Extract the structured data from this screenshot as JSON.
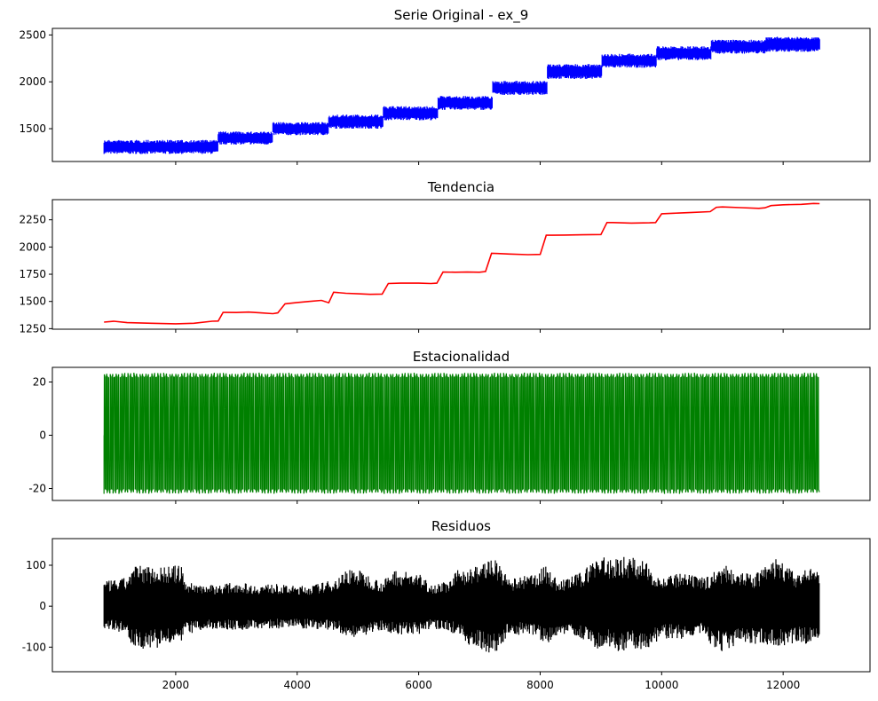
{
  "chart_data": [
    {
      "type": "line",
      "title": "Serie Original - ex_9",
      "color": "#0000ff",
      "xlim": [
        -30,
        13430
      ],
      "ylim": [
        1150,
        2570
      ],
      "yticks": [
        1500,
        2000,
        2500
      ],
      "xticks": [
        2000,
        4000,
        6000,
        8000,
        10000,
        12000
      ],
      "show_xtick_labels": false,
      "band": true,
      "level_segments": [
        {
          "x": [
            820,
            2700
          ],
          "lo": 1230,
          "hi": 1380
        },
        {
          "x": [
            2700,
            3600
          ],
          "lo": 1330,
          "hi": 1470
        },
        {
          "x": [
            3600,
            4520
          ],
          "lo": 1430,
          "hi": 1570
        },
        {
          "x": [
            4520,
            5420
          ],
          "lo": 1500,
          "hi": 1650
        },
        {
          "x": [
            5420,
            6320
          ],
          "lo": 1590,
          "hi": 1740
        },
        {
          "x": [
            6320,
            7220
          ],
          "lo": 1700,
          "hi": 1850
        },
        {
          "x": [
            7220,
            8120
          ],
          "lo": 1860,
          "hi": 2010
        },
        {
          "x": [
            8120,
            9020
          ],
          "lo": 2030,
          "hi": 2190
        },
        {
          "x": [
            9020,
            9920
          ],
          "lo": 2150,
          "hi": 2300
        },
        {
          "x": [
            9920,
            10820
          ],
          "lo": 2230,
          "hi": 2380
        },
        {
          "x": [
            10820,
            11720
          ],
          "lo": 2300,
          "hi": 2450
        },
        {
          "x": [
            11720,
            12600
          ],
          "lo": 2320,
          "hi": 2480
        }
      ]
    },
    {
      "type": "line",
      "title": "Tendencia",
      "color": "#ff0000",
      "xlim": [
        -30,
        13430
      ],
      "ylim": [
        1245,
        2435
      ],
      "yticks": [
        1250,
        1500,
        1750,
        2000,
        2250
      ],
      "xticks": [
        2000,
        4000,
        6000,
        8000,
        10000,
        12000
      ],
      "show_xtick_labels": false,
      "x": [
        820,
        980,
        1200,
        1600,
        2000,
        2300,
        2600,
        2700,
        2780,
        3000,
        3200,
        3400,
        3600,
        3680,
        3800,
        4000,
        4200,
        4400,
        4520,
        4600,
        4800,
        5000,
        5200,
        5400,
        5500,
        5700,
        6000,
        6200,
        6300,
        6400,
        6600,
        6800,
        7000,
        7100,
        7200,
        7300,
        7500,
        7800,
        8000,
        8100,
        8200,
        8400,
        8700,
        9000,
        9100,
        9200,
        9500,
        9800,
        9900,
        10000,
        10200,
        10500,
        10800,
        10900,
        11000,
        11300,
        11600,
        11700,
        11800,
        12000,
        12300,
        12500,
        12600
      ],
      "y": [
        1310,
        1318,
        1305,
        1300,
        1295,
        1300,
        1318,
        1320,
        1400,
        1398,
        1402,
        1395,
        1388,
        1395,
        1478,
        1490,
        1500,
        1510,
        1488,
        1585,
        1575,
        1570,
        1565,
        1568,
        1665,
        1668,
        1668,
        1665,
        1668,
        1770,
        1768,
        1770,
        1768,
        1775,
        1942,
        1940,
        1935,
        1930,
        1932,
        2108,
        2108,
        2110,
        2112,
        2115,
        2225,
        2225,
        2220,
        2222,
        2225,
        2305,
        2310,
        2318,
        2325,
        2365,
        2368,
        2362,
        2355,
        2360,
        2380,
        2388,
        2392,
        2400,
        2398
      ]
    },
    {
      "type": "line",
      "title": "Estacionalidad",
      "color": "#008000",
      "xlim": [
        -30,
        13430
      ],
      "ylim": [
        -24.5,
        25.5
      ],
      "yticks": [
        -20,
        0,
        20
      ],
      "xticks": [
        2000,
        4000,
        6000,
        8000,
        10000,
        12000
      ],
      "show_xtick_labels": false,
      "periodic": {
        "x": [
          820,
          12600
        ],
        "min": -22,
        "max": 23.5,
        "cycles": 120
      }
    },
    {
      "type": "line",
      "title": "Residuos",
      "color": "#000000",
      "xlim": [
        -30,
        13430
      ],
      "ylim": [
        -160,
        165
      ],
      "yticks": [
        -100,
        0,
        100
      ],
      "xticks": [
        2000,
        4000,
        6000,
        8000,
        10000,
        12000
      ],
      "show_xtick_labels": true,
      "band": true,
      "envelope": {
        "x": [
          820,
          1000,
          1200,
          1300,
          1500,
          1800,
          2100,
          2150,
          2400,
          2700,
          3000,
          3300,
          3600,
          3900,
          4200,
          4600,
          4700,
          4850,
          5000,
          5400,
          5600,
          6000,
          6200,
          6500,
          6700,
          6800,
          7100,
          7200,
          7500,
          7900,
          8100,
          8300,
          8700,
          8900,
          9000,
          9100,
          9300,
          9600,
          9800,
          10000,
          10300,
          10700,
          10800,
          11000,
          11200,
          11500,
          11900,
          12200,
          12600
        ],
        "lo": [
          -55,
          -60,
          -70,
          -100,
          -105,
          -100,
          -95,
          -70,
          -60,
          -55,
          -60,
          -55,
          -55,
          -55,
          -55,
          -60,
          -65,
          -80,
          -75,
          -60,
          -70,
          -70,
          -55,
          -60,
          -80,
          -95,
          -110,
          -125,
          -70,
          -70,
          -95,
          -70,
          -80,
          -110,
          -120,
          -100,
          -110,
          -105,
          -105,
          -80,
          -80,
          -70,
          -100,
          -110,
          -100,
          -95,
          -100,
          -90,
          -95
        ],
        "hi": [
          60,
          65,
          70,
          100,
          100,
          98,
          100,
          60,
          55,
          52,
          60,
          52,
          55,
          50,
          50,
          65,
          75,
          95,
          90,
          60,
          90,
          80,
          55,
          60,
          100,
          90,
          110,
          125,
          65,
          80,
          100,
          60,
          85,
          120,
          135,
          110,
          125,
          120,
          100,
          70,
          80,
          70,
          80,
          100,
          95,
          75,
          120,
          80,
          100
        ]
      }
    }
  ]
}
